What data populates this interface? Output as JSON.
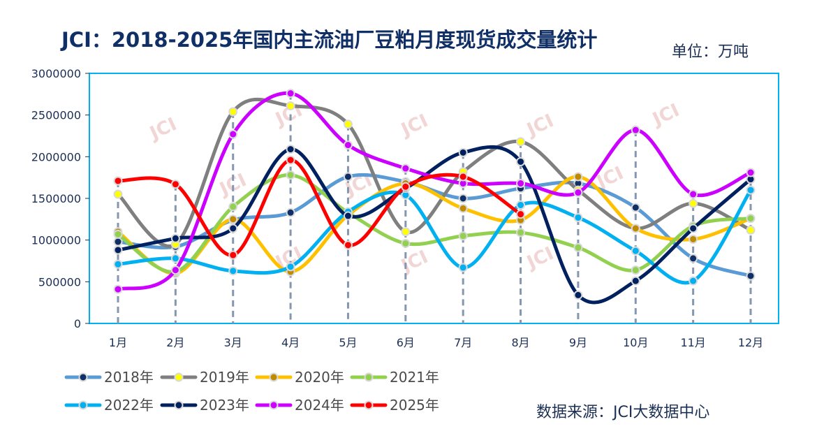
{
  "title": "JCI：2018-2025年国内主流油厂豆粕月度现货成交量统计",
  "unit_label": "单位：万吨",
  "source_label": "数据来源：JCI大数据中心",
  "watermark": "JCI",
  "chart_data": {
    "type": "line",
    "title": "JCI：2018-2025年国内主流油厂豆粕月度现货成交量统计",
    "xlabel": "",
    "ylabel": "单位：万吨",
    "ylim": [
      0,
      3000000
    ],
    "yticks": [
      0,
      500000,
      1000000,
      1500000,
      2000000,
      2500000,
      3000000
    ],
    "categories": [
      "1月",
      "2月",
      "3月",
      "4月",
      "5月",
      "6月",
      "7月",
      "8月",
      "9月",
      "10月",
      "11月",
      "12月"
    ],
    "series": [
      {
        "name": "2018年",
        "color": "#5b9bd5",
        "marker": "#0f2f66",
        "values": [
          980000,
          920000,
          1240000,
          1330000,
          1760000,
          1700000,
          1500000,
          1620000,
          1680000,
          1390000,
          780000,
          570000
        ]
      },
      {
        "name": "2019年",
        "color": "#7f7f7f",
        "marker": "#ffff00",
        "values": [
          1550000,
          950000,
          2540000,
          2610000,
          2390000,
          1100000,
          1820000,
          2180000,
          1600000,
          1140000,
          1440000,
          1120000
        ]
      },
      {
        "name": "2020年",
        "color": "#ffc000",
        "marker": "#c08a00",
        "values": [
          1100000,
          600000,
          1250000,
          620000,
          1300000,
          1680000,
          1380000,
          1240000,
          1760000,
          1140000,
          1010000,
          1260000
        ]
      },
      {
        "name": "2021年",
        "color": "#92d050",
        "marker": "#92d050",
        "values": [
          1070000,
          620000,
          1400000,
          1780000,
          1330000,
          960000,
          1050000,
          1090000,
          910000,
          640000,
          1170000,
          1260000
        ]
      },
      {
        "name": "2022年",
        "color": "#00b0f0",
        "marker": "#00b0f0",
        "values": [
          710000,
          780000,
          630000,
          680000,
          1340000,
          1540000,
          670000,
          1420000,
          1270000,
          870000,
          510000,
          1600000
        ]
      },
      {
        "name": "2023年",
        "color": "#002060",
        "marker": "#002060",
        "values": [
          880000,
          1020000,
          1140000,
          2090000,
          1290000,
          1620000,
          2050000,
          1940000,
          340000,
          510000,
          1140000,
          1730000
        ]
      },
      {
        "name": "2024年",
        "color": "#cc00ff",
        "marker": "#cc00ff",
        "values": [
          410000,
          640000,
          2270000,
          2760000,
          2140000,
          1860000,
          1680000,
          1680000,
          1570000,
          2320000,
          1550000,
          1810000
        ]
      },
      {
        "name": "2025年",
        "color": "#ff0000",
        "marker": "#ff0000",
        "values": [
          1710000,
          1670000,
          820000,
          1960000,
          940000,
          1640000,
          1760000,
          1310000,
          null,
          null,
          null,
          null
        ]
      }
    ]
  }
}
